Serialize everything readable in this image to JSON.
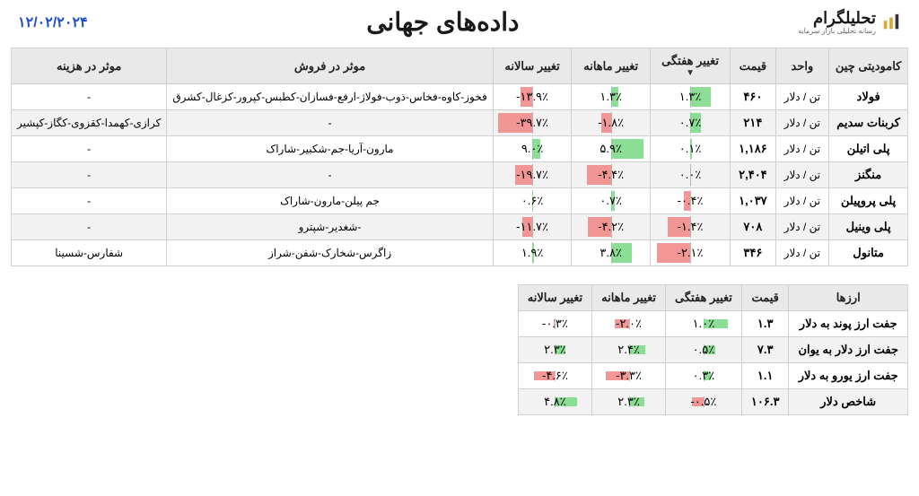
{
  "meta": {
    "logo_main": "تحلیلگرام",
    "logo_sub": "رسانه تحلیلی بازار سرمایه",
    "title": "داده‌های جهانی",
    "date": "۱۲/۰۲/۲۰۲۴",
    "date_color": "#2050d0",
    "pos_color": "#7fd98a",
    "neg_color": "#f28b8b"
  },
  "table1": {
    "headers": {
      "commodity": "کامودیتی چین",
      "unit": "واحد",
      "price": "قیمت",
      "weekly": "تغییر هفتگی",
      "monthly": "تغییر ماهانه",
      "yearly": "تغییر سالانه",
      "sales": "موثر در فروش",
      "cost": "موثر در هزینه"
    },
    "sort_arrow": "▼",
    "col_widths_pct": [
      9,
      7,
      6,
      11,
      11,
      11,
      34,
      11
    ],
    "max_abs": {
      "weekly": 2.5,
      "monthly": 7,
      "yearly": 45
    },
    "rows": [
      {
        "name": "فولاد",
        "unit": "تن / دلار",
        "price": "۴۶۰",
        "weekly": 1.3,
        "monthly": 1.3,
        "yearly": -13.9,
        "sales": "فخوز-کاوه-فخاس-ذوب-فولاژ-ارفع-فسازان-کطبس-کپرور-کزغال-کشرق",
        "cost": "-"
      },
      {
        "name": "کربنات سدیم",
        "unit": "تن / دلار",
        "price": "۲۱۴",
        "weekly": 0.7,
        "monthly": -1.8,
        "yearly": -39.7,
        "sales": "-",
        "cost": "کرازی-کهمدا-کقزوی-کگاز-کپشیر"
      },
      {
        "name": "پلی اتیلن",
        "unit": "تن / دلار",
        "price": "۱,۱۸۶",
        "weekly": 0.1,
        "monthly": 5.9,
        "yearly": 9.0,
        "sales": "مارون-آریا-جم-شکبیر-شاراک",
        "cost": "-"
      },
      {
        "name": "منگنز",
        "unit": "تن / دلار",
        "price": "۲,۴۰۴",
        "weekly": 0.0,
        "monthly": -4.4,
        "yearly": -19.7,
        "sales": "-",
        "cost": "-"
      },
      {
        "name": "پلی پروپیلن",
        "unit": "تن / دلار",
        "price": "۱,۰۳۷",
        "weekly": -0.4,
        "monthly": 0.7,
        "yearly": 0.6,
        "sales": "جم پیلن-مارون-شاراک",
        "cost": "-"
      },
      {
        "name": "پلی وینیل",
        "unit": "تن / دلار",
        "price": "۷۰۸",
        "weekly": -1.4,
        "monthly": -4.2,
        "yearly": -11.7,
        "sales": "-شغدیر-شپترو",
        "cost": "-"
      },
      {
        "name": "متانول",
        "unit": "تن / دلار",
        "price": "۳۴۶",
        "weekly": -2.1,
        "monthly": 3.8,
        "yearly": 1.9,
        "sales": "زاگرس-شخارک-شفن-شراز",
        "cost": "شفارس-شسینا"
      }
    ]
  },
  "table2": {
    "headers": {
      "name": "ارزها",
      "price": "قیمت",
      "weekly": "تغییر هفتگی",
      "monthly": "تغییر ماهانه",
      "yearly": "تغییر سالانه"
    },
    "max_abs": {
      "weekly": 1.2,
      "monthly": 4,
      "yearly": 6
    },
    "rows": [
      {
        "name": "جفت ارز پوند به دلار",
        "price": "۱.۳",
        "weekly": 1.0,
        "monthly": -2.0,
        "yearly": -0.3
      },
      {
        "name": "جفت ارز دلار به یوان",
        "price": "۷.۳",
        "weekly": 0.5,
        "monthly": 2.4,
        "yearly": 2.3
      },
      {
        "name": "جفت ارز یورو به دلار",
        "price": "۱.۱",
        "weekly": 0.3,
        "monthly": -3.3,
        "yearly": -4.6
      },
      {
        "name": "شاخص دلار",
        "price": "۱۰۶.۳",
        "weekly": -0.5,
        "monthly": 2.3,
        "yearly": 4.8
      }
    ]
  }
}
